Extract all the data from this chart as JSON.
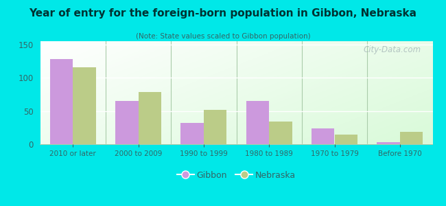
{
  "title": "Year of entry for the foreign-born population in Gibbon, Nebraska",
  "subtitle": "(Note: State values scaled to Gibbon population)",
  "categories": [
    "2010 or later",
    "2000 to 2009",
    "1990 to 1999",
    "1980 to 1989",
    "1970 to 1979",
    "Before 1970"
  ],
  "gibbon_values": [
    128,
    65,
    32,
    65,
    24,
    3
  ],
  "nebraska_values": [
    116,
    79,
    52,
    34,
    14,
    19
  ],
  "gibbon_color": "#cc99dd",
  "nebraska_color": "#bbcc88",
  "background_outer": "#00e8e8",
  "ylim": [
    0,
    155
  ],
  "yticks": [
    0,
    50,
    100,
    150
  ],
  "bar_width": 0.35,
  "legend_gibbon": "Gibbon",
  "legend_nebraska": "Nebraska",
  "watermark": "City-Data.com",
  "title_color": "#003333",
  "subtitle_color": "#336666",
  "tick_color": "#336666"
}
